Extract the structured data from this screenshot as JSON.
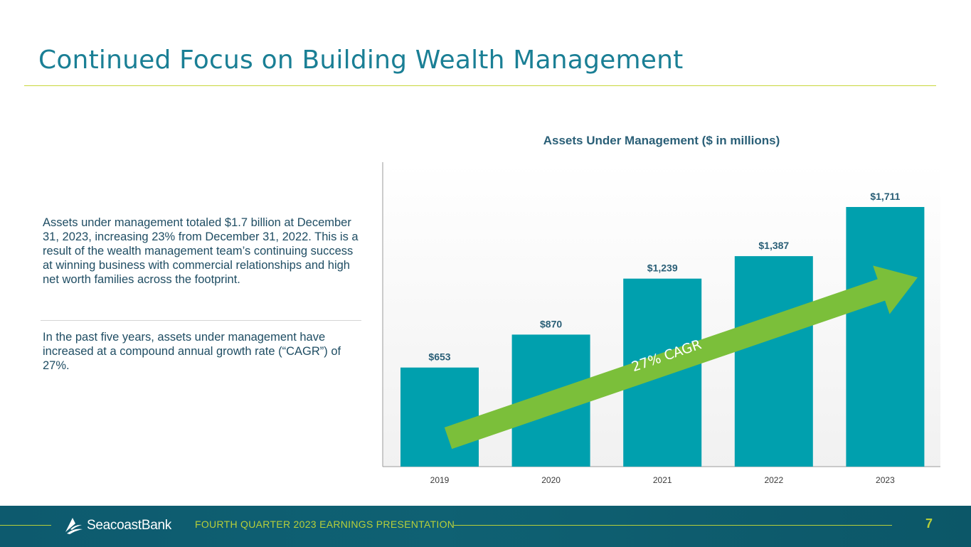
{
  "page": {
    "title": "Continued Focus on Building Wealth Management",
    "paragraphs": [
      "Assets under management totaled $1.7 billion at December 31, 2023, increasing 23% from December 31, 2022. This is a result of the wealth management team’s continuing success at winning business with commercial relationships and high net worth families across the footprint.",
      "In the past five years, assets under management have increased at a compound annual growth rate (“CAGR”) of 27%."
    ]
  },
  "chart_data": {
    "type": "bar",
    "title": "Assets Under Management ($ in millions)",
    "categories": [
      "2019",
      "2020",
      "2021",
      "2022",
      "2023"
    ],
    "values": [
      653,
      870,
      1239,
      1387,
      1711
    ],
    "value_labels": [
      "$653",
      "$870",
      "$1,239",
      "$1,387",
      "$1,711"
    ],
    "xlabel": "",
    "ylabel": "",
    "ylim": [
      0,
      1900
    ],
    "grid": false,
    "annotation": "27% CAGR",
    "colors": {
      "bar": "#00a0ae",
      "arrow": "#7bbf3a",
      "label": "#2a5f77"
    }
  },
  "footer": {
    "logo_text": "SeacoastBank",
    "label": "FOURTH QUARTER 2023 EARNINGS PRESENTATION",
    "page_number": "7"
  }
}
